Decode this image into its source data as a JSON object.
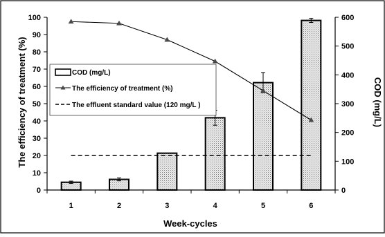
{
  "chart_data": {
    "type": "bar",
    "categories": [
      "1",
      "2",
      "3",
      "4",
      "5",
      "6"
    ],
    "xlabel": "Week-cycles",
    "ylabel_left": "The efficiency of treatment (%)",
    "ylabel_right": "COD (mg/L)",
    "ylim_left": [
      0,
      100
    ],
    "ylim_right": [
      0,
      600
    ],
    "yticks_left": [
      "0",
      "10",
      "20",
      "30",
      "40",
      "50",
      "60",
      "70",
      "80",
      "90",
      "100"
    ],
    "yticks_right": [
      "0",
      "100",
      "200",
      "300",
      "400",
      "500",
      "600"
    ],
    "grid": false,
    "legend_placement": "left-middle",
    "series": [
      {
        "name": "COD (mg/L)",
        "type": "bar",
        "axis": "right",
        "values": [
          27,
          37,
          128,
          251,
          373,
          589
        ],
        "errors": [
          4,
          5,
          0,
          26,
          35,
          7
        ],
        "fill": "dotted-grey"
      },
      {
        "name": "The efficiency of treatment (%)",
        "type": "line",
        "axis": "left",
        "values": [
          97.5,
          96.5,
          87,
          74.5,
          57.5,
          40.5
        ],
        "marker": "triangle",
        "color": "#4a4a4a"
      },
      {
        "name": "The effluent standard value (120 mg/L )",
        "type": "dashed-hline",
        "axis": "right",
        "value": 120
      }
    ]
  }
}
